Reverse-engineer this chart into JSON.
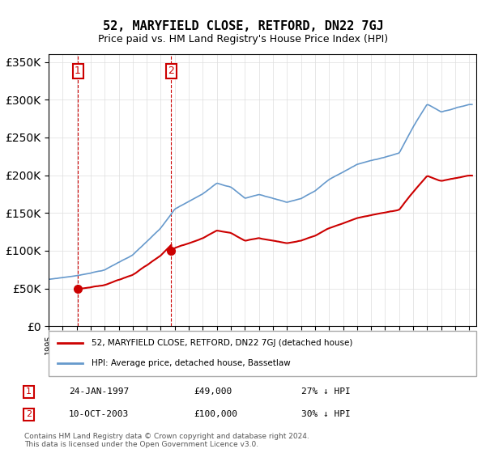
{
  "title": "52, MARYFIELD CLOSE, RETFORD, DN22 7GJ",
  "subtitle": "Price paid vs. HM Land Registry's House Price Index (HPI)",
  "sale1_date": "24-JAN-1997",
  "sale1_price": 49000,
  "sale1_label": "1",
  "sale1_hpi": "27% ↓ HPI",
  "sale2_date": "10-OCT-2003",
  "sale2_price": 100000,
  "sale2_label": "2",
  "sale2_hpi": "30% ↓ HPI",
  "legend_line1": "52, MARYFIELD CLOSE, RETFORD, DN22 7GJ (detached house)",
  "legend_line2": "HPI: Average price, detached house, Bassetlaw",
  "footer": "Contains HM Land Registry data © Crown copyright and database right 2024.\nThis data is licensed under the Open Government Licence v3.0.",
  "property_color": "#cc0000",
  "hpi_color": "#6699cc",
  "sale_marker_color": "#cc0000",
  "vline_color": "#cc0000",
  "background_color": "#ffffff",
  "ylim": [
    0,
    360000
  ],
  "yticks": [
    0,
    50000,
    100000,
    150000,
    200000,
    250000,
    300000,
    350000
  ],
  "xlim_start": 1995.0,
  "xlim_end": 2025.5
}
